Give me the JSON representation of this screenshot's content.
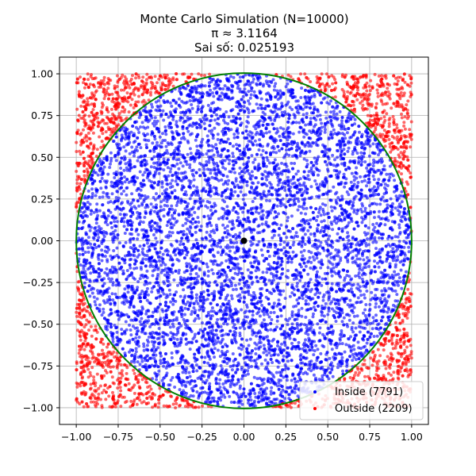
{
  "chart_data": {
    "type": "scatter",
    "title_lines": [
      "Monte Carlo Simulation (N=10000)",
      "π ≈ 3.1164",
      "Sai số: 0.025193"
    ],
    "xlabel": "",
    "ylabel": "",
    "xlim": [
      -1.1,
      1.1
    ],
    "ylim": [
      -1.1,
      1.1
    ],
    "x_ticks": [
      -1.0,
      -0.75,
      -0.5,
      -0.25,
      0.0,
      0.25,
      0.5,
      0.75,
      1.0
    ],
    "y_ticks": [
      -1.0,
      -0.75,
      -0.5,
      -0.25,
      0.0,
      0.25,
      0.5,
      0.75,
      1.0
    ],
    "x_tick_labels": [
      "−1.00",
      "−0.75",
      "−0.50",
      "−0.25",
      "0.00",
      "0.25",
      "0.50",
      "0.75",
      "1.00"
    ],
    "y_tick_labels": [
      "−1.00",
      "−0.75",
      "−0.50",
      "−0.25",
      "0.00",
      "0.25",
      "0.50",
      "0.75",
      "1.00"
    ],
    "grid": true,
    "legend_position": "lower-right",
    "circle": {
      "center": [
        0,
        0
      ],
      "radius": 1,
      "color": "#008000"
    },
    "center_point": {
      "x": 0,
      "y": 0,
      "color": "#000000"
    },
    "n_total": 10000,
    "series": [
      {
        "name": "Inside (7791)",
        "count": 7791,
        "color": "#0000ff",
        "region": "inside unit circle"
      },
      {
        "name": "Outside (2209)",
        "count": 2209,
        "color": "#ff0000",
        "region": "outside unit circle"
      }
    ]
  }
}
